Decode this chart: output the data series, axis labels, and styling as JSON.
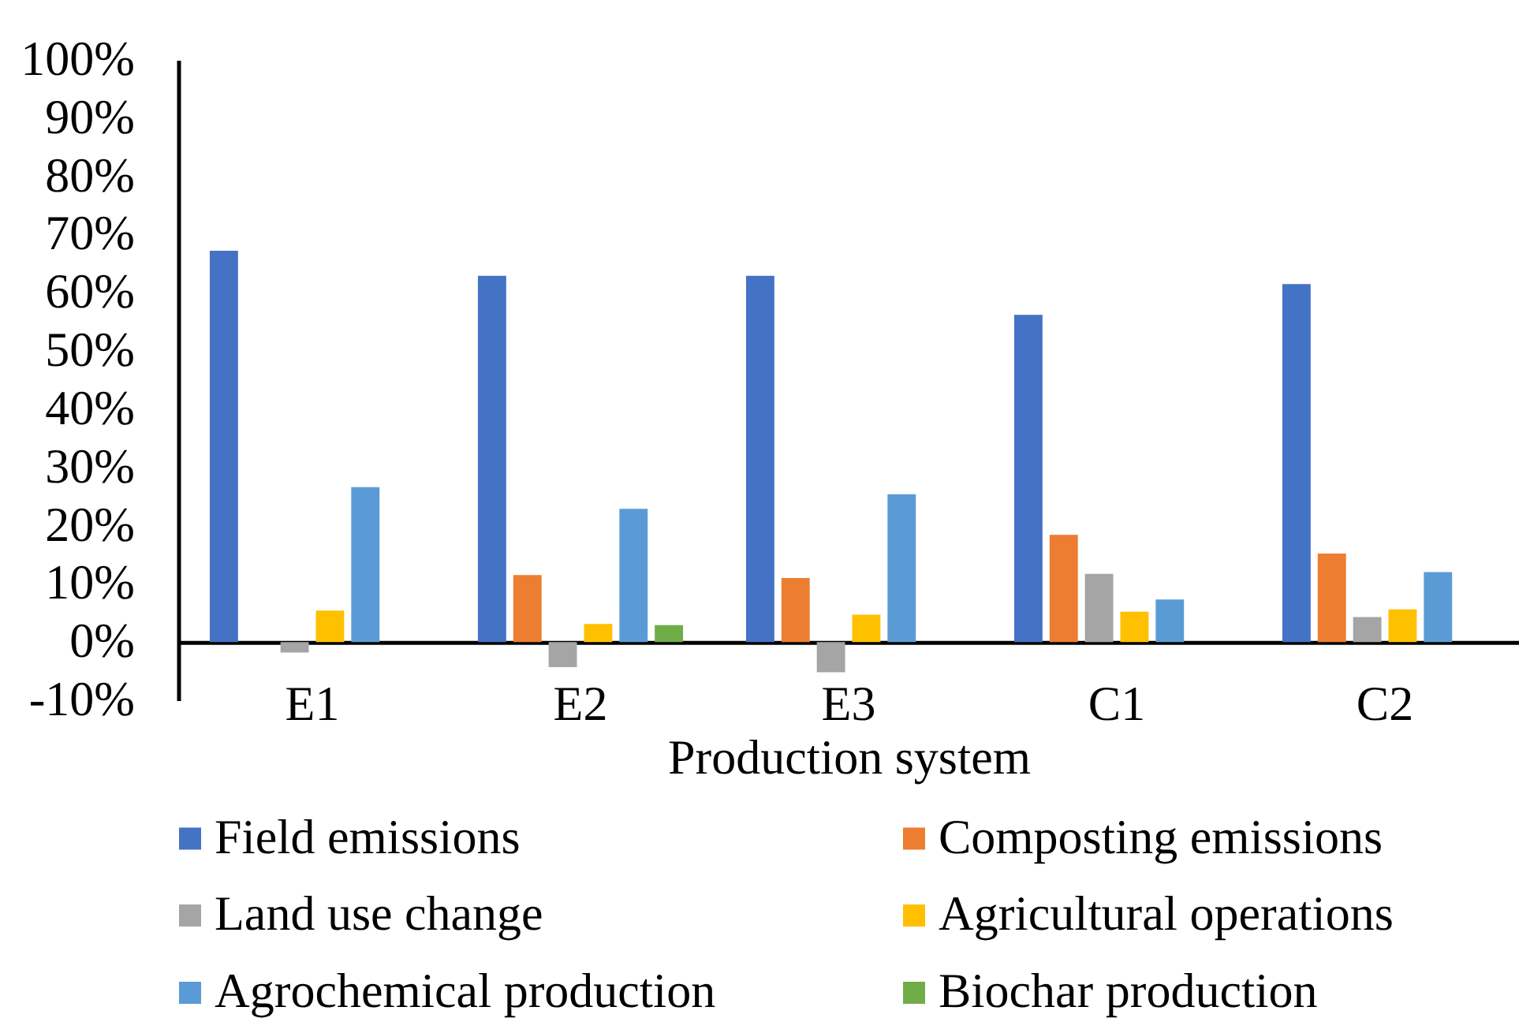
{
  "chart_data": {
    "type": "bar",
    "xlabel": "Production system",
    "categories": [
      "E1",
      "E2",
      "E3",
      "C1",
      "C2"
    ],
    "series": [
      {
        "name": "Field emissions",
        "color": "#4472c4",
        "values": [
          67.2,
          62.9,
          62.9,
          56.2,
          61.5
        ]
      },
      {
        "name": "Composting emissions",
        "color": "#ed7d31",
        "values": [
          null,
          11.5,
          11.0,
          18.4,
          15.2
        ]
      },
      {
        "name": "Land use change",
        "color": "#a5a5a5",
        "values": [
          -1.8,
          -4.3,
          -5.2,
          11.7,
          4.3
        ]
      },
      {
        "name": "Agricultural operations",
        "color": "#ffc000",
        "values": [
          5.4,
          3.1,
          4.7,
          5.2,
          5.6
        ]
      },
      {
        "name": "Agrochemical production",
        "color": "#5b9bd5",
        "values": [
          26.6,
          22.9,
          25.4,
          7.3,
          12.0
        ]
      },
      {
        "name": "Biochar production",
        "color": "#70ad47",
        "values": [
          null,
          2.9,
          null,
          null,
          null
        ]
      }
    ],
    "ylim": [
      -10,
      100
    ],
    "yticks": [
      {
        "value": -10,
        "label": "-10%"
      },
      {
        "value": 0,
        "label": "0%"
      },
      {
        "value": 10,
        "label": "10%"
      },
      {
        "value": 20,
        "label": "20%"
      },
      {
        "value": 30,
        "label": "30%"
      },
      {
        "value": 40,
        "label": "40%"
      },
      {
        "value": 50,
        "label": "50%"
      },
      {
        "value": 60,
        "label": "60%"
      },
      {
        "value": 70,
        "label": "70%"
      },
      {
        "value": 80,
        "label": "80%"
      },
      {
        "value": 90,
        "label": "90%"
      },
      {
        "value": 100,
        "label": "100%"
      }
    ],
    "grid": false,
    "legend": "bottom"
  }
}
